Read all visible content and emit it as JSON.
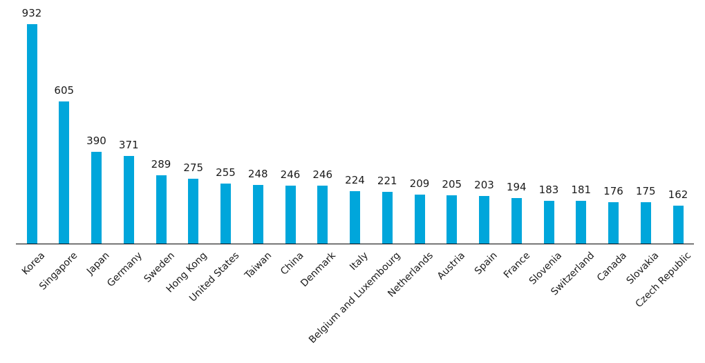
{
  "chart_data": {
    "type": "bar",
    "title": "",
    "xlabel": "",
    "ylabel": "",
    "categories": [
      "Korea",
      "Singapore",
      "Japan",
      "Germany",
      "Sweden",
      "Hong Kong",
      "United States",
      "Taiwan",
      "China",
      "Denmark",
      "Italy",
      "Belgium and Luxembourg",
      "Netherlands",
      "Austria",
      "Spain",
      "France",
      "Slovenia",
      "Switzerland",
      "Canada",
      "Slovakia",
      "Czech Republic"
    ],
    "values": [
      932,
      605,
      390,
      371,
      289,
      275,
      255,
      248,
      246,
      246,
      224,
      221,
      209,
      205,
      203,
      194,
      183,
      181,
      176,
      175,
      162
    ],
    "ylim": [
      0,
      932
    ],
    "grid": false,
    "legend": "none",
    "data_labels": true,
    "bar_color": "#00A6DB",
    "axis_color": "#000000",
    "text_color": "#1A1A1A"
  }
}
